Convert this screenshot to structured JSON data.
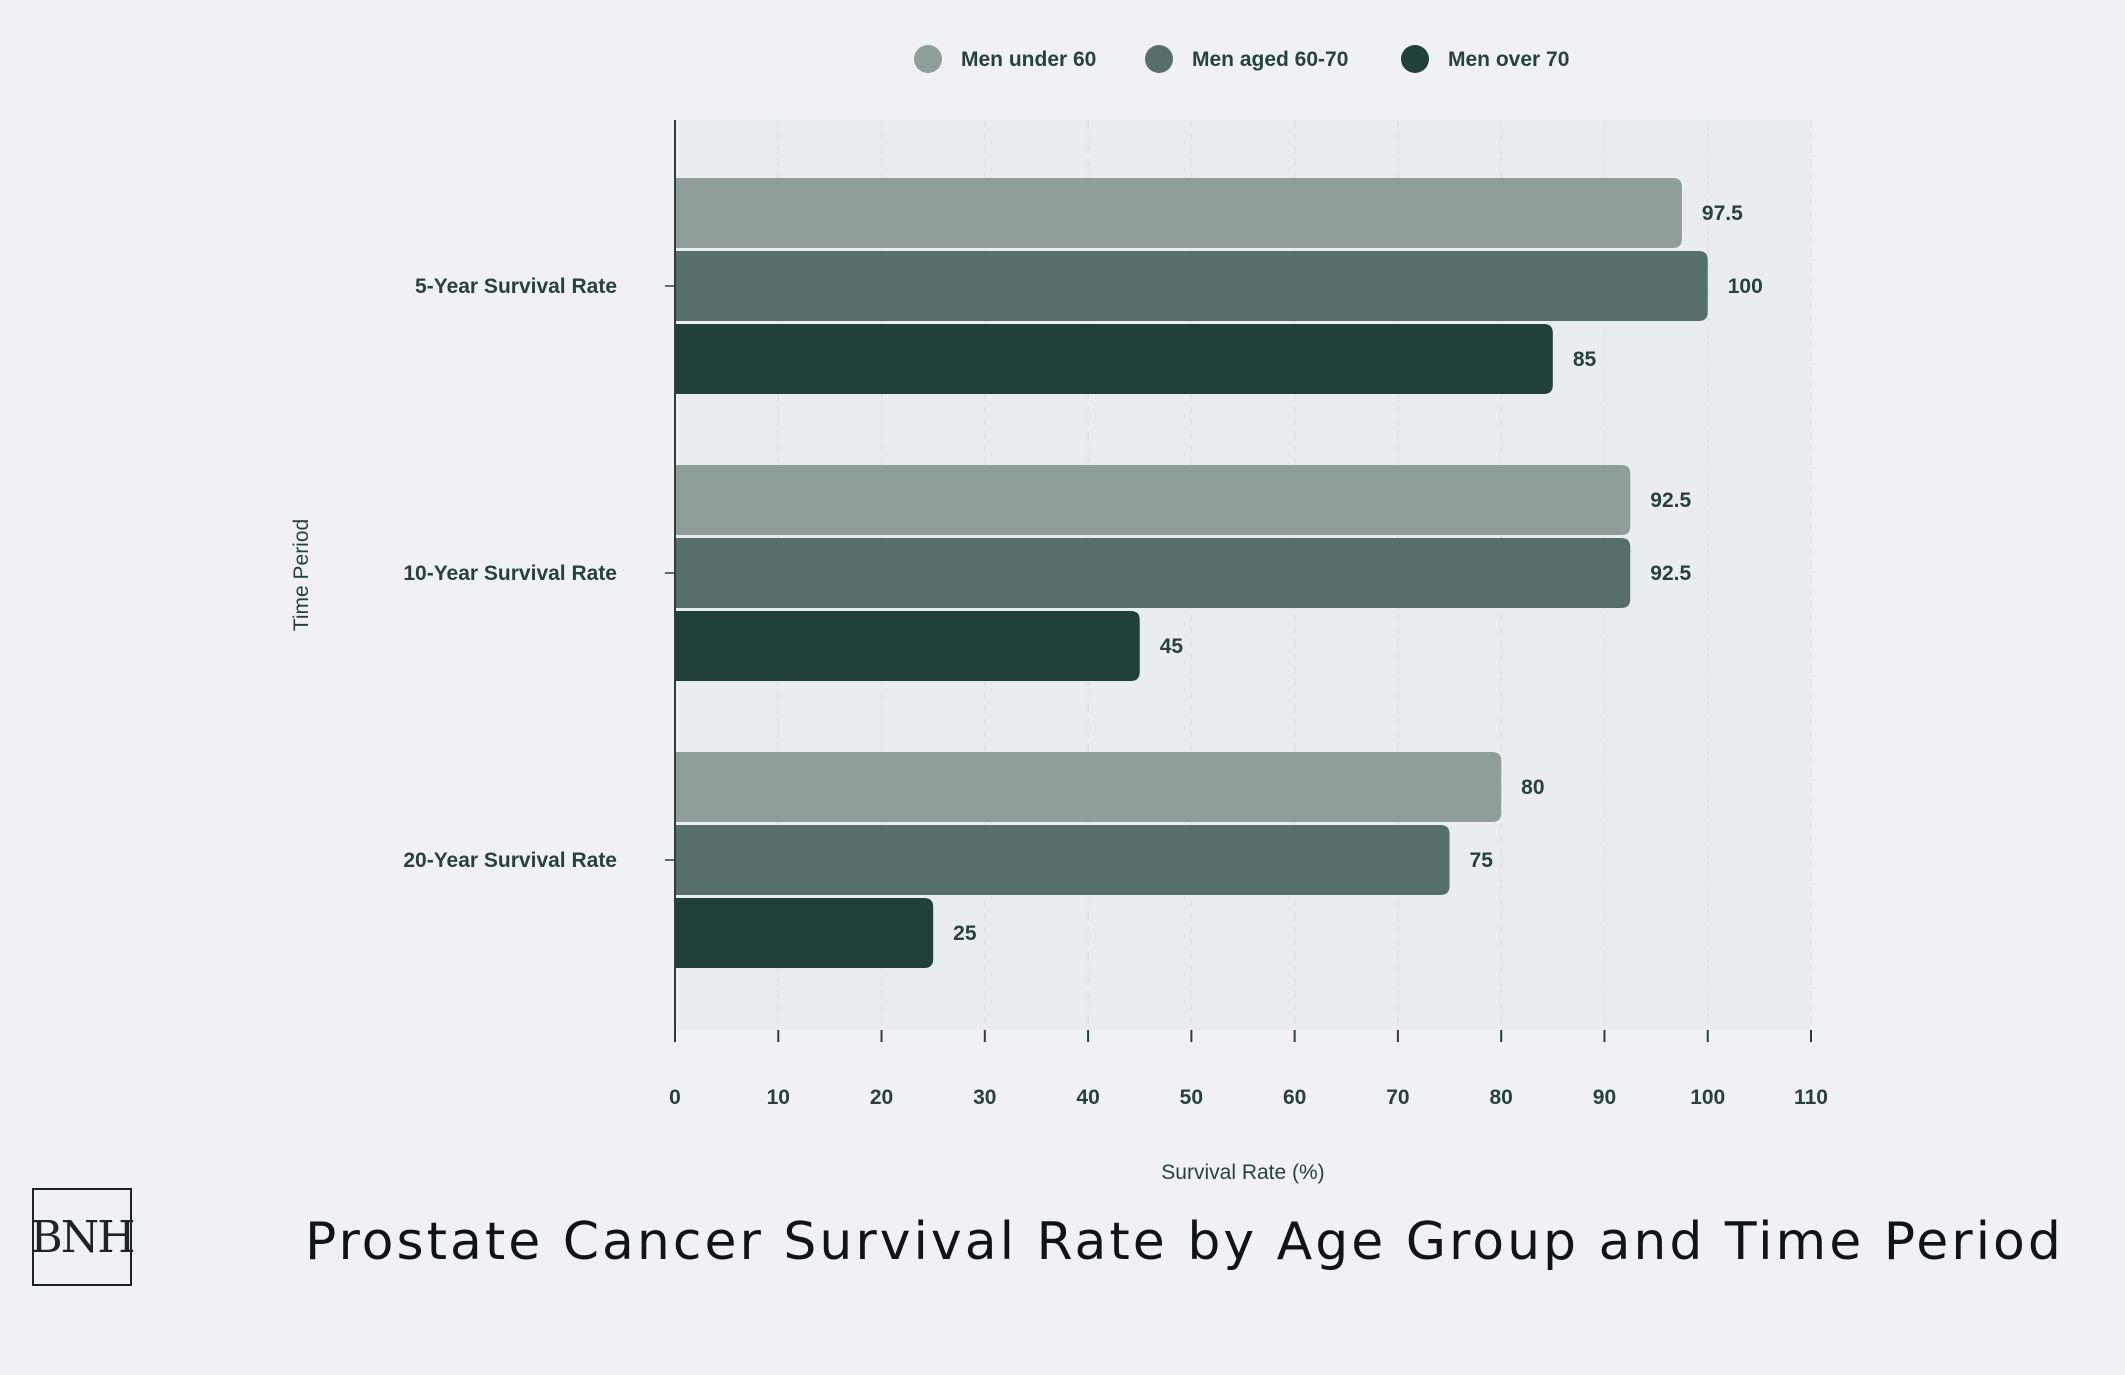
{
  "chart_data": {
    "type": "bar",
    "orientation": "horizontal",
    "title": "Prostate Cancer Survival Rate by Age Group and Time Period",
    "xlabel": "Survival Rate (%)",
    "ylabel": "Time Period",
    "xlim": [
      0,
      110
    ],
    "x_ticks": [
      0,
      10,
      20,
      30,
      40,
      50,
      60,
      70,
      80,
      90,
      100,
      110
    ],
    "categories": [
      "5-Year Survival Rate",
      "10-Year Survival Rate",
      "20-Year Survival Rate"
    ],
    "series": [
      {
        "name": "Men under 60",
        "color": "#8f9e9b",
        "values": [
          97.5,
          92.5,
          80
        ]
      },
      {
        "name": "Men aged 60-70",
        "color": "#566f6b",
        "values": [
          100,
          92.5,
          75
        ]
      },
      {
        "name": "Men over 70",
        "color": "#21403c",
        "values": [
          85,
          45,
          25
        ]
      }
    ],
    "legend_position": "top",
    "grid": "vertical dashed",
    "plot_background": "#eaedf0"
  },
  "logo": {
    "text": "BNH"
  }
}
